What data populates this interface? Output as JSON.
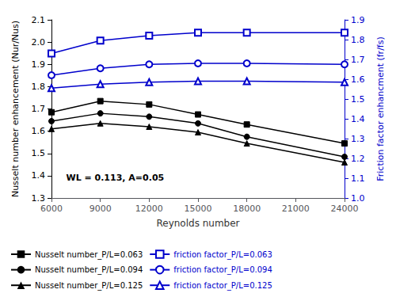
{
  "chart_data": {
    "type": "line",
    "x": [
      6000,
      9000,
      12000,
      15000,
      18000,
      24000
    ],
    "xlabel": "Reynolds number",
    "ylabel": "Nusselt number enhancement (Nur/Nus)",
    "y2label": "Friction factor enhancment (fr/fs)",
    "annotation": "WL = 0.113, A=0.05",
    "xlim": [
      6000,
      24000
    ],
    "xticks": [
      6000,
      9000,
      12000,
      15000,
      18000,
      21000,
      24000
    ],
    "ylim": [
      1.3,
      2.1
    ],
    "yticks": [
      1.3,
      1.4,
      1.5,
      1.6,
      1.7,
      1.8,
      1.9,
      {
        "value": 2.0,
        "label": "2.0"
      },
      2.1
    ],
    "y2lim": [
      1.0,
      1.9
    ],
    "y2ticks": [
      {
        "value": 1.0,
        "label": "1.0"
      },
      1.1,
      1.2,
      1.3,
      1.4,
      1.5,
      1.6,
      1.7,
      1.8,
      1.9
    ],
    "grid": false,
    "legend": "lower left",
    "series": [
      {
        "name": "Nusselt number_P/L=0.063",
        "color": "#000000",
        "marker": "square",
        "values": [
          1.685,
          1.735,
          1.72,
          1.675,
          1.63,
          1.545
        ]
      },
      {
        "name": "friction factor_P/L=0.063",
        "color": "#0000CC",
        "marker": "open_square",
        "axis": "y2",
        "values": [
          1.73,
          1.795,
          1.82,
          1.835,
          1.835,
          1.835
        ]
      },
      {
        "name": "Nusselt number_P/L=0.094",
        "color": "#000000",
        "marker": "circle",
        "values": [
          1.645,
          1.68,
          1.665,
          1.635,
          1.575,
          1.485
        ]
      },
      {
        "name": "friction factor_P/L=0.094",
        "color": "#0000CC",
        "marker": "open_circle",
        "axis": "y2",
        "values": [
          1.62,
          1.655,
          1.675,
          1.68,
          1.68,
          1.675
        ]
      },
      {
        "name": "Nusselt number_P/L=0.125",
        "color": "#000000",
        "marker": "triangle",
        "values": [
          1.61,
          1.635,
          1.62,
          1.595,
          1.545,
          1.46
        ]
      },
      {
        "name": "friction factor_P/L=0.125",
        "color": "#0000CC",
        "marker": "open_triangle",
        "axis": "y2",
        "values": [
          1.555,
          1.575,
          1.585,
          1.59,
          1.59,
          1.585
        ]
      }
    ]
  }
}
